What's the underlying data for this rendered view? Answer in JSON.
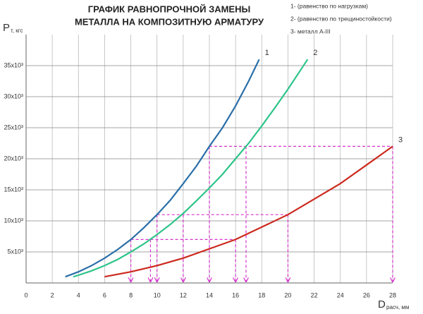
{
  "chart_data": {
    "type": "line",
    "title_lines": [
      "ГРАФИК РАВНОПРОЧНОЙ ЗАМЕНЫ",
      "МЕТАЛЛА НА КОМПОЗИТНУЮ АРМАТУРУ"
    ],
    "legend": [
      "1- (равенство по нагрузкам)",
      "2- (равенство по трещиностойкости)",
      "3- металл А-III"
    ],
    "y_label": {
      "main": "P",
      "sub": "т, кгс"
    },
    "x_label": {
      "main": "D",
      "sub": "расч, мм"
    },
    "xlim": [
      0,
      28
    ],
    "ylim": [
      0,
      40000
    ],
    "xticks": [
      0,
      2,
      4,
      6,
      8,
      10,
      12,
      14,
      16,
      18,
      20,
      22,
      24,
      26,
      28
    ],
    "yticks": [
      {
        "value": 5000,
        "label": "5x10³"
      },
      {
        "value": 10000,
        "label": "10x10³"
      },
      {
        "value": 15000,
        "label": "15x10³"
      },
      {
        "value": 20000,
        "label": "20x10³"
      },
      {
        "value": 25000,
        "label": "25x10³"
      },
      {
        "value": 30000,
        "label": "30x10³"
      },
      {
        "value": 35000,
        "label": "35x10³"
      }
    ],
    "grid": true,
    "series": [
      {
        "label": "1",
        "color": "#2a6fa8",
        "x": [
          3,
          4,
          5,
          6,
          7,
          8,
          9,
          10,
          11,
          12,
          13,
          14,
          15,
          16,
          17,
          17.8
        ],
        "values": [
          1000,
          1800,
          2800,
          4000,
          5400,
          7000,
          8900,
          11000,
          13300,
          16000,
          18800,
          22000,
          25000,
          28500,
          32500,
          36000
        ]
      },
      {
        "label": "2",
        "color": "#2ec48a",
        "x": [
          3.6,
          4,
          5,
          6,
          7,
          8,
          9,
          10,
          11,
          12,
          13,
          14,
          15,
          16,
          17,
          18,
          19,
          20,
          21,
          21.5
        ],
        "values": [
          1000,
          1250,
          1950,
          2800,
          3800,
          5000,
          6300,
          7800,
          9400,
          11200,
          13200,
          15300,
          17500,
          20000,
          22500,
          25300,
          28200,
          31200,
          34400,
          36000
        ]
      },
      {
        "label": "3",
        "color": "#cc2a1e",
        "x": [
          6,
          8,
          10,
          12,
          14,
          16,
          18,
          20,
          22,
          24,
          26,
          28
        ],
        "values": [
          1000,
          1800,
          2800,
          4000,
          5500,
          7000,
          9000,
          11000,
          13500,
          16000,
          19000,
          22000
        ]
      }
    ],
    "guides": {
      "color": "#d633cc",
      "x": [
        8,
        9.5,
        16,
        10,
        12,
        20,
        14,
        16.8,
        28
      ],
      "values": [
        7000,
        7000,
        7000,
        11000,
        11000,
        11000,
        22000,
        22000,
        22000
      ]
    }
  }
}
